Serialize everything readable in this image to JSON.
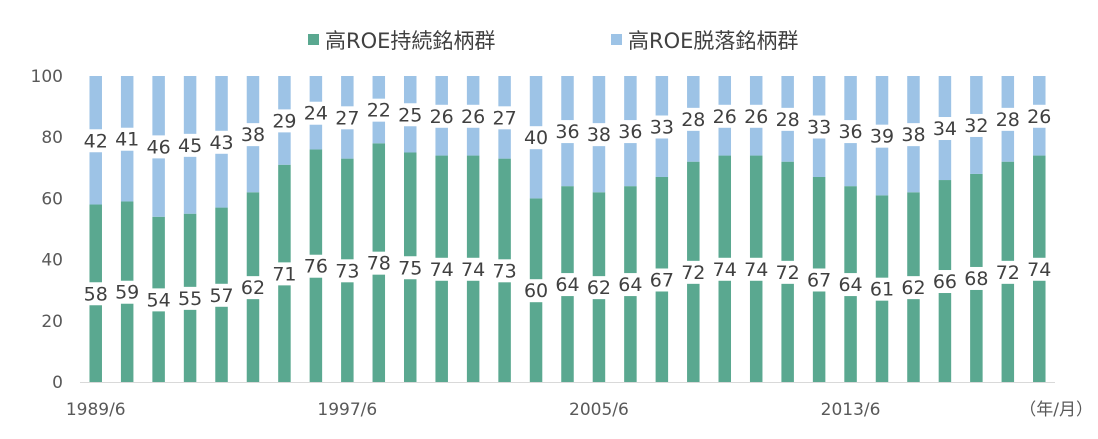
{
  "chart_data": {
    "type": "bar",
    "stacked": true,
    "categories": [
      "1989/6",
      "1990/6",
      "1991/6",
      "1992/6",
      "1993/6",
      "1994/6",
      "1995/6",
      "1996/6",
      "1997/6",
      "1998/6",
      "1999/6",
      "2000/6",
      "2001/6",
      "2002/6",
      "2003/6",
      "2004/6",
      "2005/6",
      "2006/6",
      "2007/6",
      "2008/6",
      "2009/6",
      "2010/6",
      "2011/6",
      "2012/6",
      "2013/6",
      "2014/6",
      "2015/6",
      "2016/6",
      "2017/6",
      "2018/6",
      "2019/6"
    ],
    "x_tick_labels": [
      "1989/6",
      "1997/6",
      "2005/6",
      "2013/6"
    ],
    "x_unit_label": "（年/月）",
    "series": [
      {
        "name": "高ROE持続銘柄群",
        "color": "#5aa890",
        "values": [
          58,
          59,
          54,
          55,
          57,
          62,
          71,
          76,
          73,
          78,
          75,
          74,
          74,
          73,
          60,
          64,
          62,
          64,
          67,
          72,
          74,
          74,
          72,
          67,
          64,
          61,
          62,
          66,
          68,
          72,
          74
        ]
      },
      {
        "name": "高ROE脱落銘柄群",
        "color": "#9dc3e6",
        "values": [
          42,
          41,
          46,
          45,
          43,
          38,
          29,
          24,
          27,
          22,
          25,
          26,
          26,
          27,
          40,
          36,
          38,
          36,
          33,
          28,
          26,
          26,
          28,
          33,
          36,
          39,
          38,
          34,
          32,
          28,
          26
        ]
      }
    ],
    "ylim": [
      0,
      100
    ],
    "yticks": [
      0,
      20,
      40,
      60,
      80,
      100
    ],
    "legend_position": "top",
    "grid": false,
    "data_labels": true
  }
}
